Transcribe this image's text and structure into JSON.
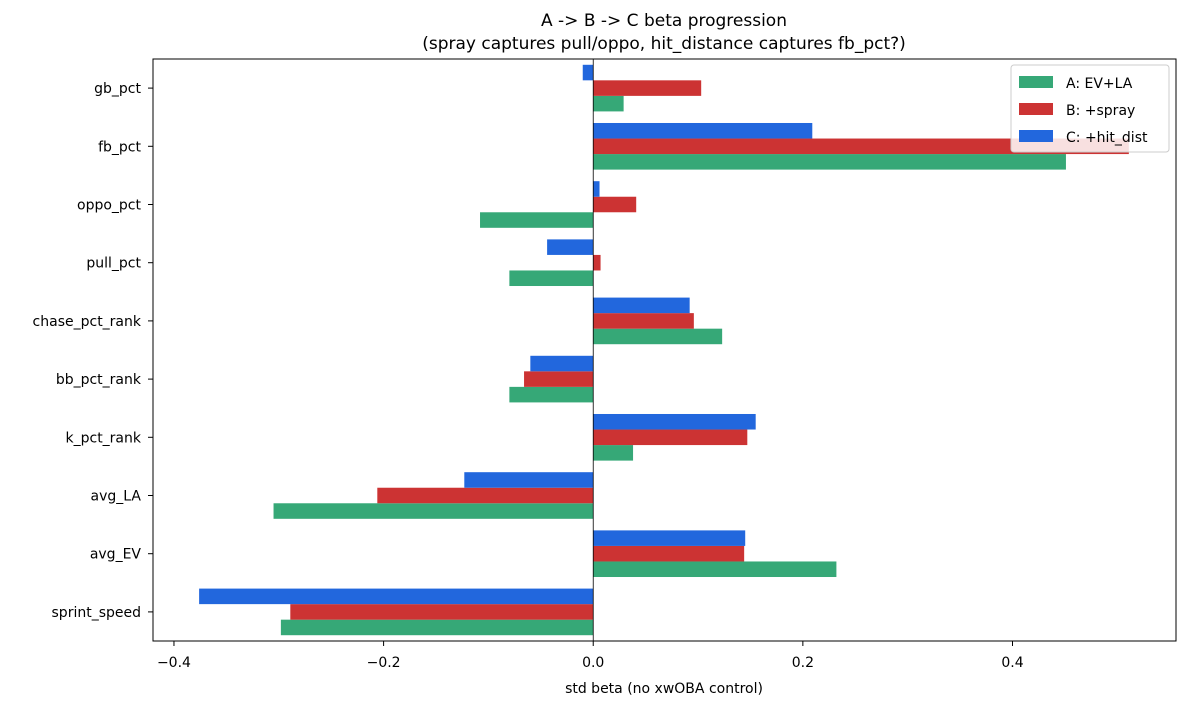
{
  "chart_data": {
    "type": "bar",
    "orientation": "horizontal",
    "title": "A -> B -> C beta progression",
    "subtitle": "(spray captures pull/oppo, hit_distance captures fb_pct?)",
    "xlabel": "std beta (no xwOBA control)",
    "ylabel": "",
    "xlim": [
      -0.42,
      0.556
    ],
    "x_ticks": [
      -0.4,
      -0.2,
      0.0,
      0.2,
      0.4
    ],
    "x_tick_labels": [
      "−0.4",
      "−0.2",
      "0.0",
      "0.2",
      "0.4"
    ],
    "grid": false,
    "legend_position": "top-right",
    "categories": [
      "sprint_speed",
      "avg_EV",
      "avg_LA",
      "k_pct_rank",
      "bb_pct_rank",
      "chase_pct_rank",
      "pull_pct",
      "oppo_pct",
      "fb_pct",
      "gb_pct"
    ],
    "series": [
      {
        "name": "A: EV+LA",
        "color": "#36a877",
        "values": [
          -0.298,
          0.232,
          -0.305,
          0.038,
          -0.08,
          0.123,
          -0.08,
          -0.108,
          0.451,
          0.029
        ]
      },
      {
        "name": "B: +spray",
        "color": "#cc3333",
        "values": [
          -0.289,
          0.144,
          -0.206,
          0.147,
          -0.066,
          0.096,
          0.007,
          0.041,
          0.511,
          0.103
        ]
      },
      {
        "name": "C: +hit_dist",
        "color": "#2267dd",
        "values": [
          -0.376,
          0.145,
          -0.123,
          0.155,
          -0.06,
          0.092,
          -0.044,
          0.006,
          0.209,
          -0.01
        ]
      }
    ]
  }
}
